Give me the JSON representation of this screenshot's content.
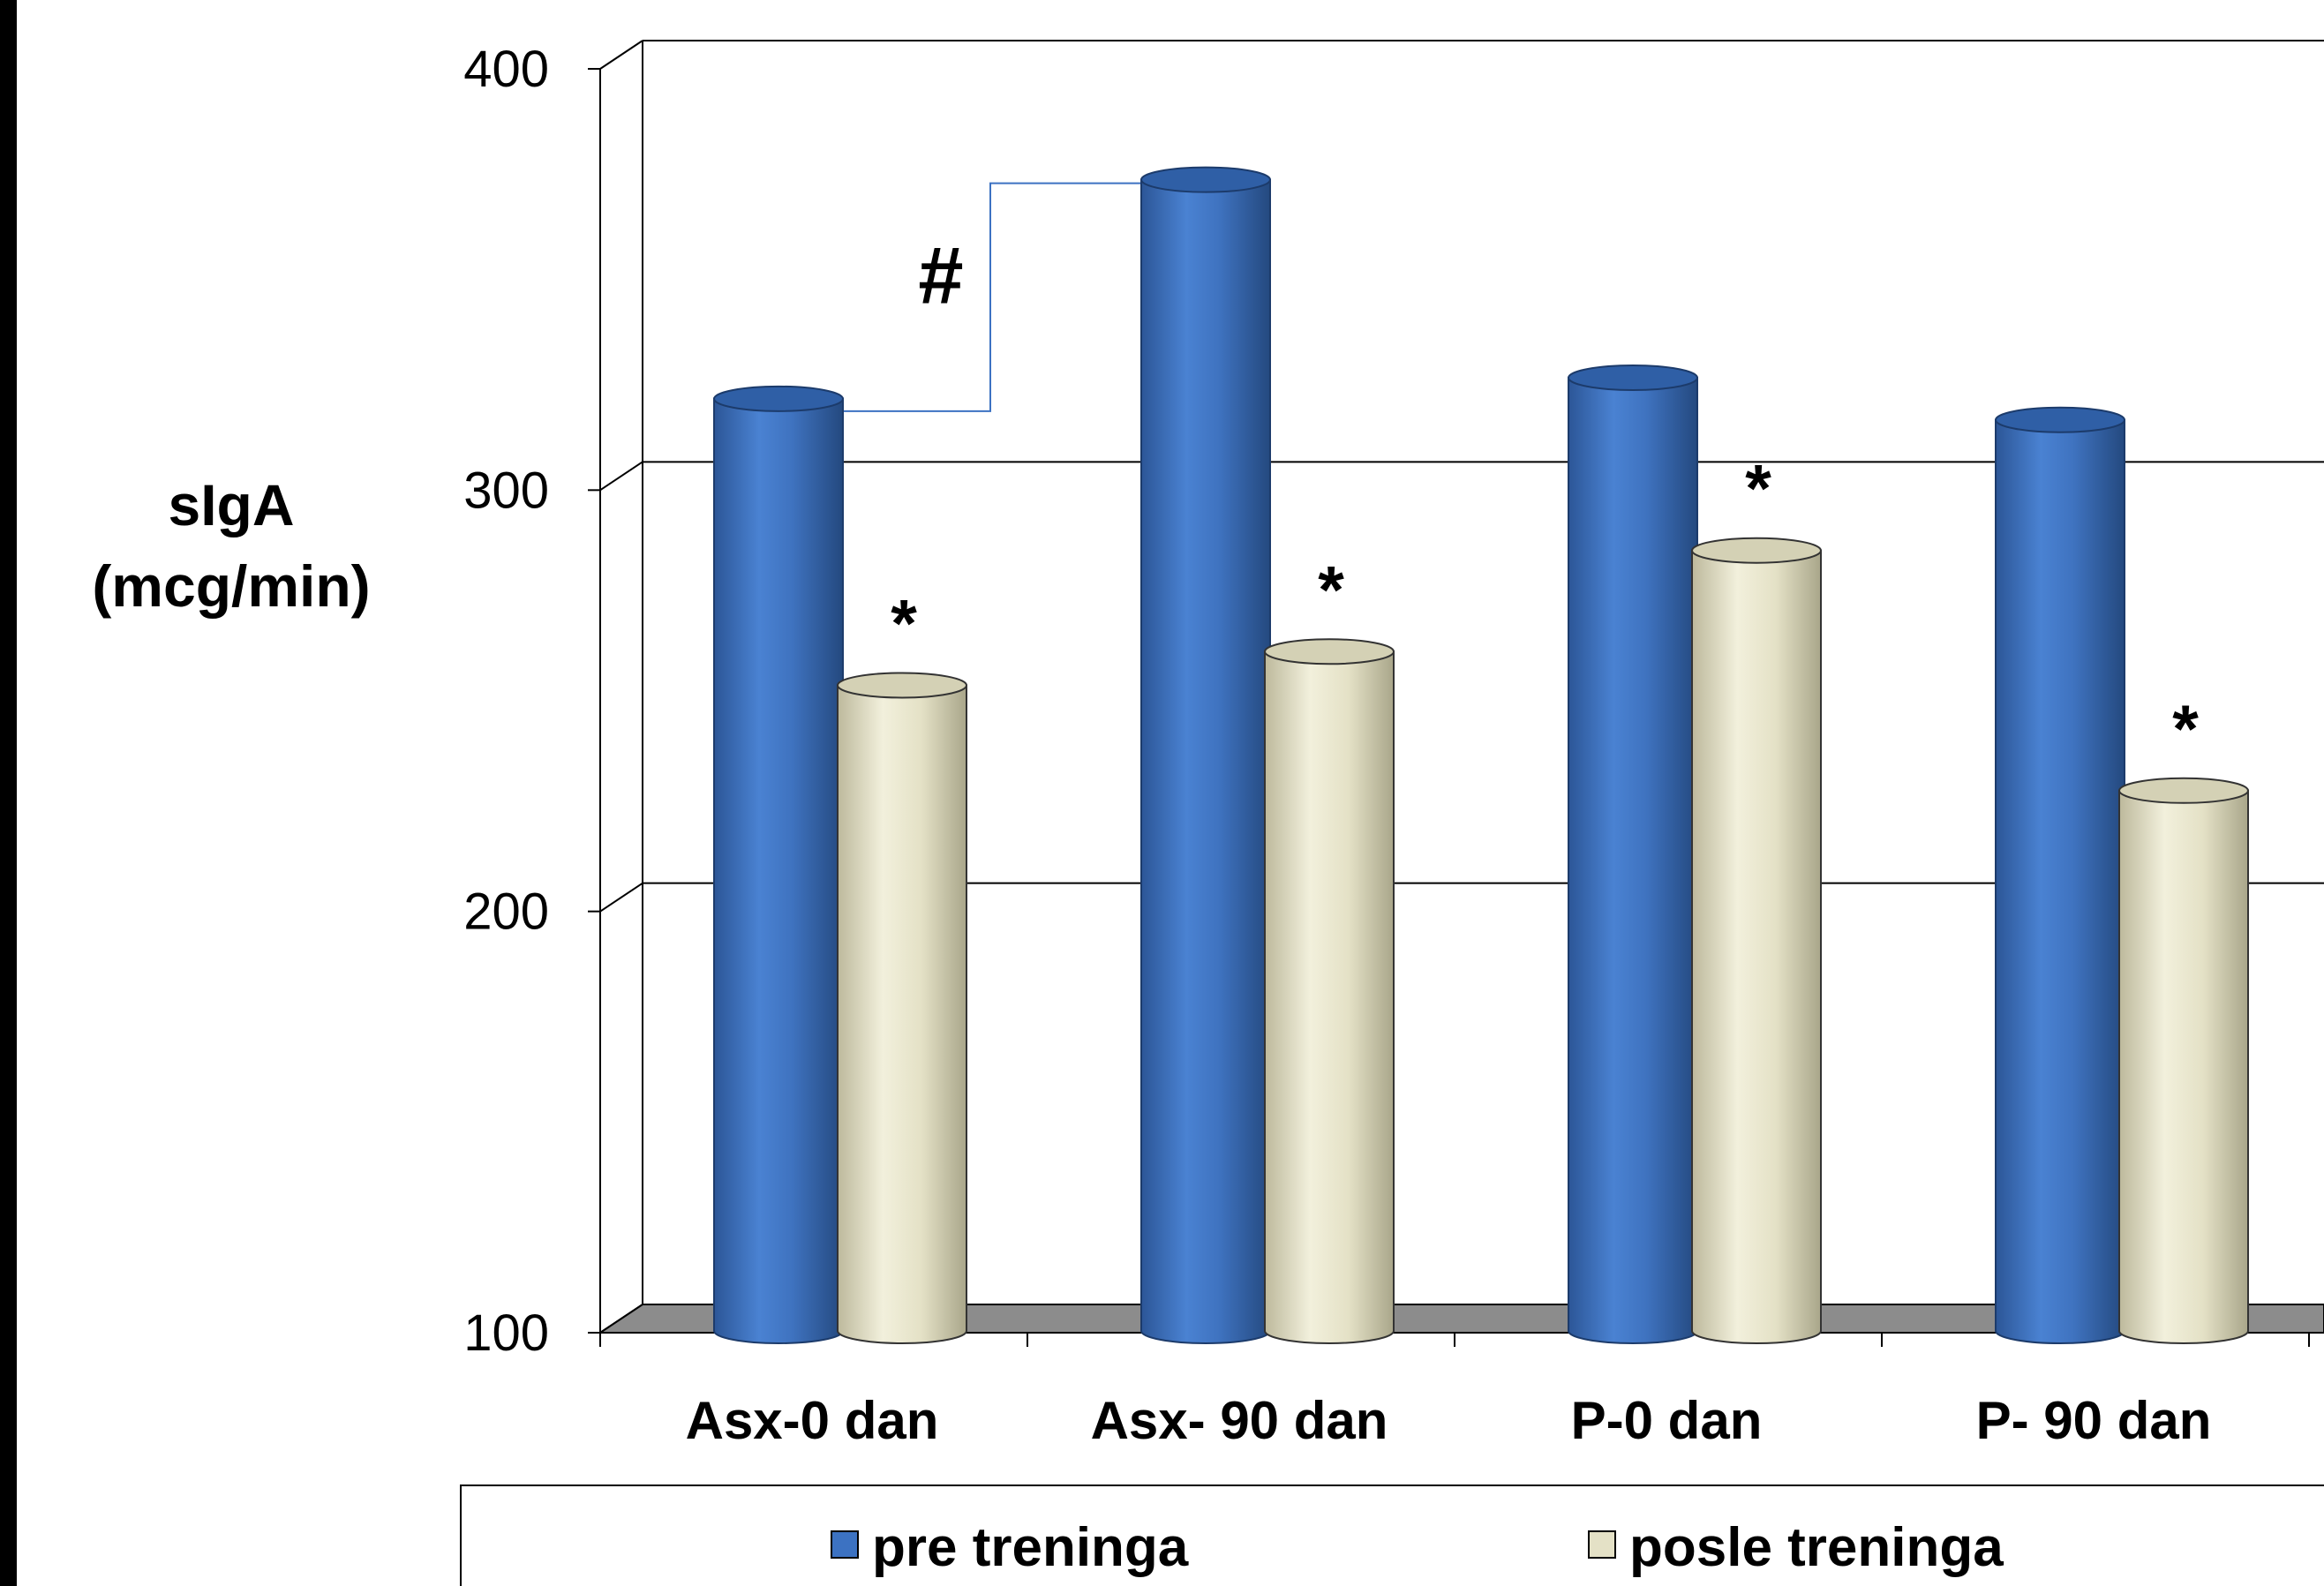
{
  "chart_data": {
    "type": "bar",
    "ylabel_lines": [
      "sIgA",
      "(mcg/min)"
    ],
    "ylim": [
      100,
      400
    ],
    "yticks": [
      "100",
      "200",
      "300",
      "400"
    ],
    "categories": [
      "Asx-0 dan",
      "Asx- 90 dan",
      "P-0 dan",
      "P- 90 dan"
    ],
    "series": [
      {
        "name": "pre treninga",
        "values": [
          320,
          372,
          325,
          315
        ],
        "color": "#3C72C2"
      },
      {
        "name": "posle treninga",
        "values": [
          252,
          260,
          284,
          227
        ],
        "color": "#E4E1C6"
      }
    ],
    "annotations": {
      "star": "*",
      "star_series": "posle treninga",
      "star_categories": [
        0,
        1,
        2,
        3
      ],
      "hash": "#",
      "hash_between": [
        0,
        1
      ]
    },
    "grid": true,
    "legend_position": "bottom"
  }
}
